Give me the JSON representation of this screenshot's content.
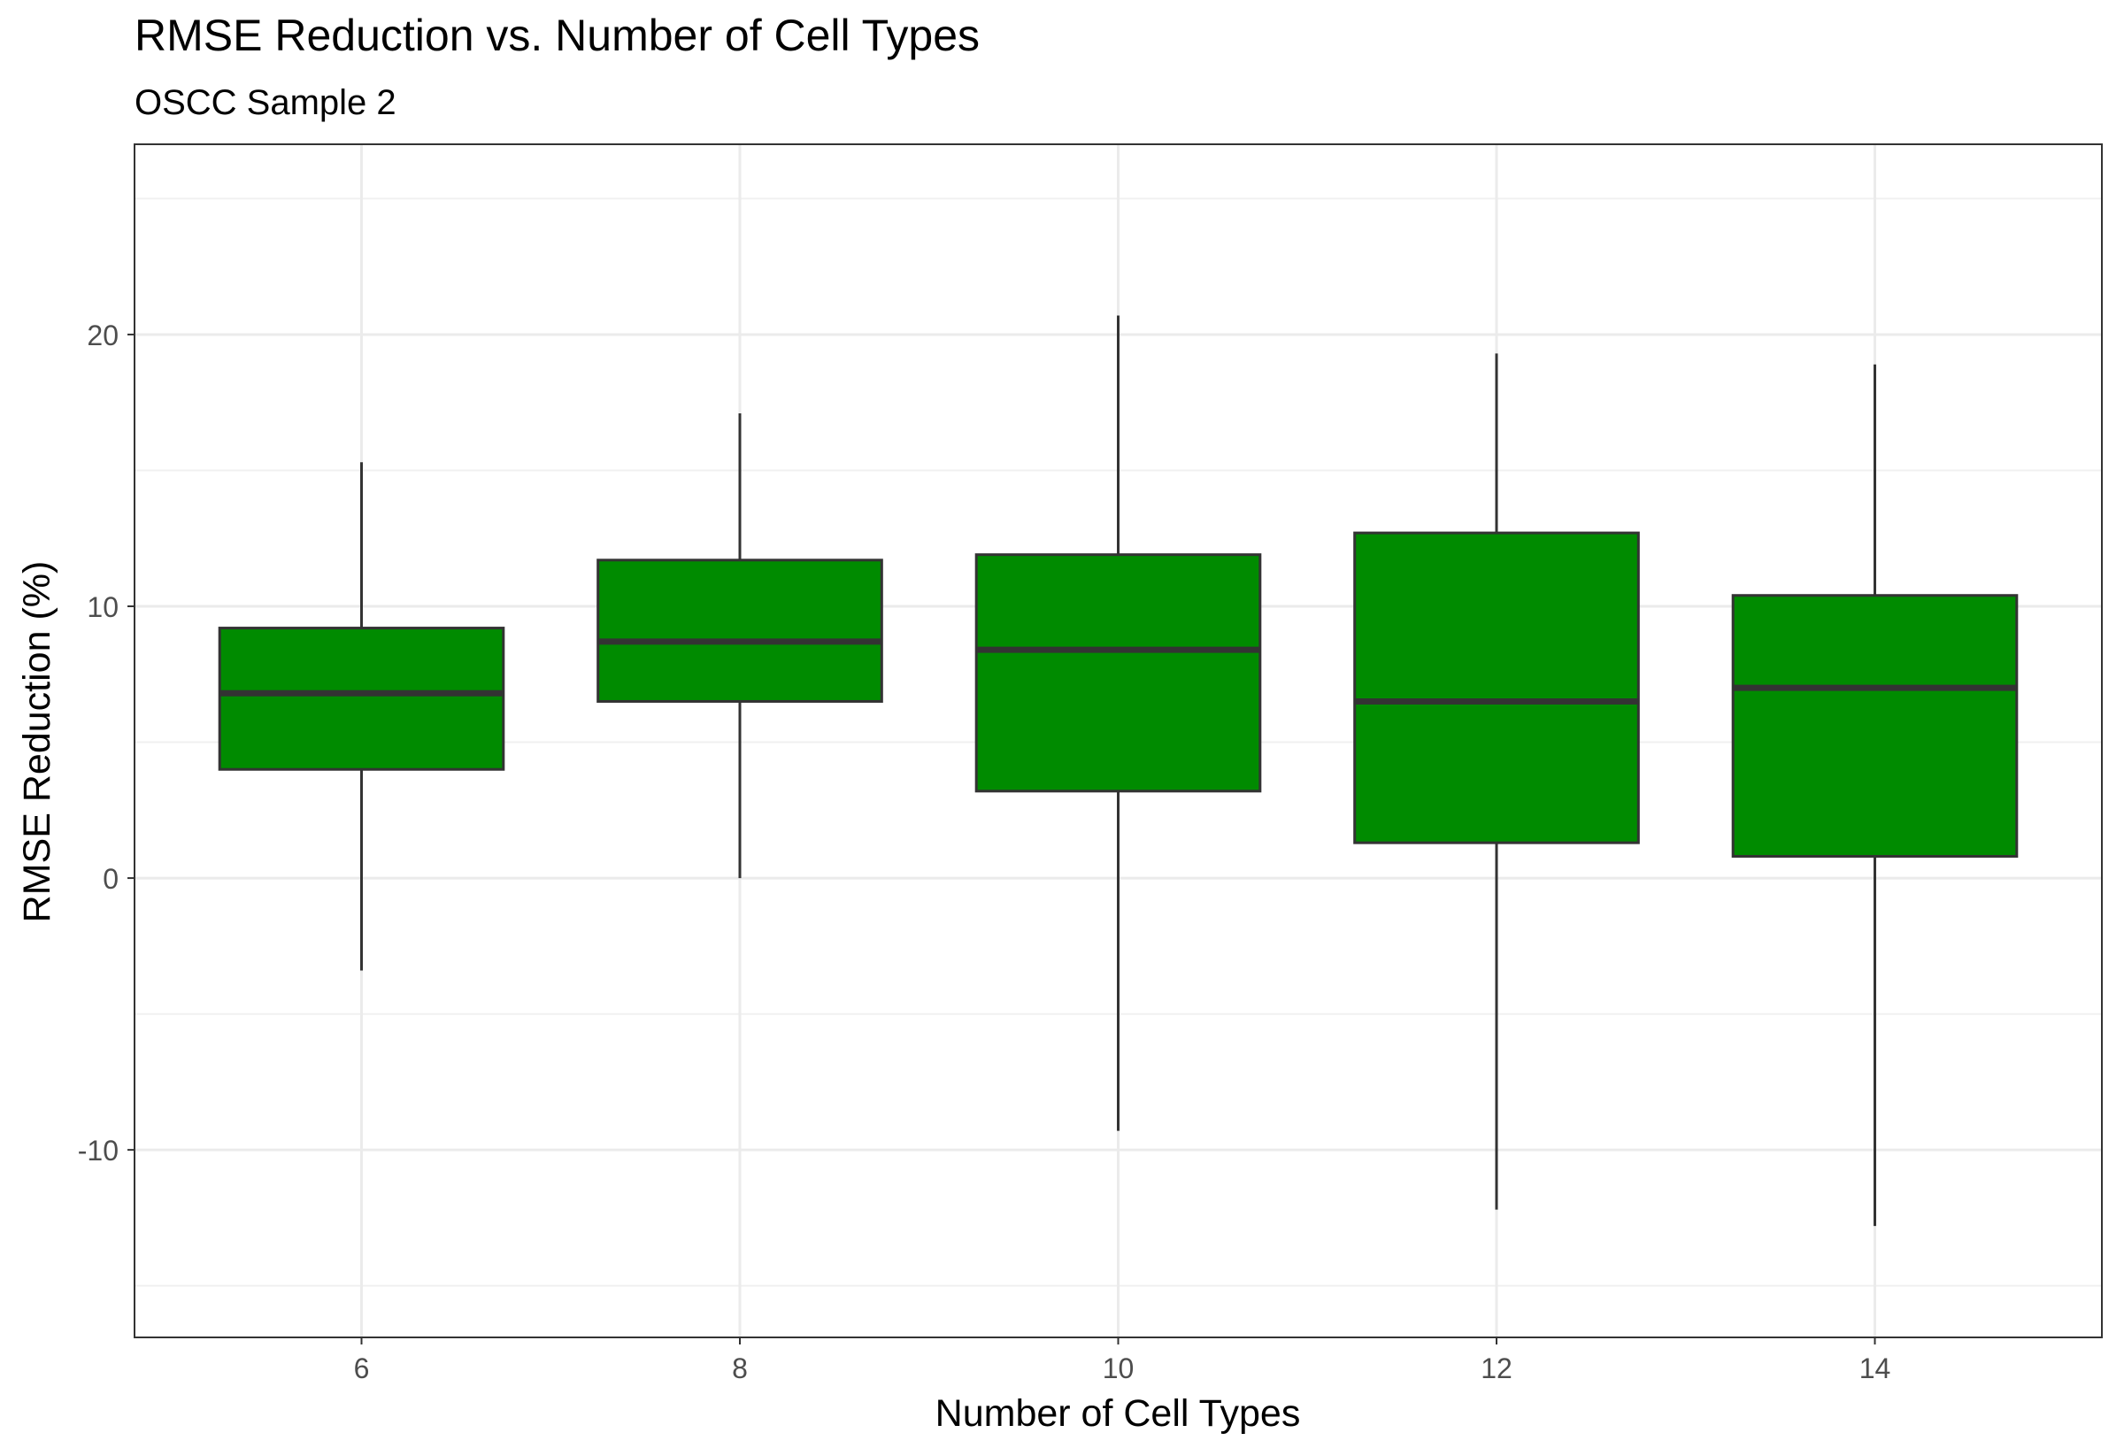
{
  "chart_data": {
    "type": "boxplot",
    "title": "RMSE Reduction vs. Number of Cell Types",
    "subtitle": "OSCC Sample 2",
    "xlabel": "Number of Cell Types",
    "ylabel": "RMSE Reduction (%)",
    "x_ticks": [
      6,
      8,
      10,
      12,
      14
    ],
    "x_tick_labels": [
      "6",
      "8",
      "10",
      "12",
      "14"
    ],
    "xlim": [
      4.8,
      15.2
    ],
    "y_ticks": [
      -10,
      0,
      10,
      20
    ],
    "y_tick_labels": [
      "-10",
      "0",
      "10",
      "20"
    ],
    "ylim": [
      -16.9,
      27
    ],
    "grid": true,
    "fill_color": "#008B00",
    "outline_color": "#333333",
    "boxes": [
      {
        "x": 6,
        "min": -3.4,
        "q1": 4.0,
        "median": 6.8,
        "q3": 9.2,
        "max": 15.3
      },
      {
        "x": 8,
        "min": 0.0,
        "q1": 6.5,
        "median": 8.7,
        "q3": 11.7,
        "max": 17.1
      },
      {
        "x": 10,
        "min": -9.3,
        "q1": 3.2,
        "median": 8.4,
        "q3": 11.9,
        "max": 20.7
      },
      {
        "x": 12,
        "min": -12.2,
        "q1": 1.3,
        "median": 6.5,
        "q3": 12.7,
        "max": 19.3
      },
      {
        "x": 14,
        "min": -12.8,
        "q1": 0.8,
        "median": 7.0,
        "q3": 10.4,
        "max": 18.9
      }
    ]
  }
}
